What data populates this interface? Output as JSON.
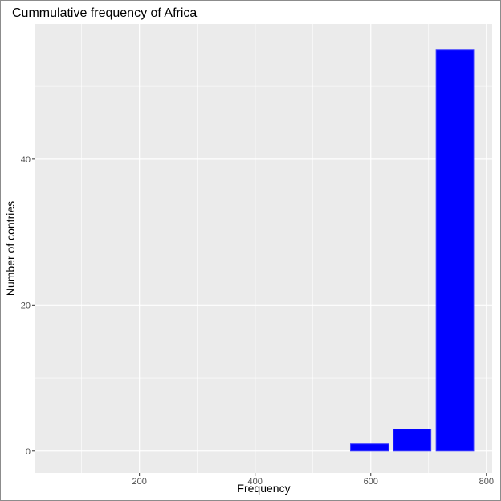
{
  "chart_data": {
    "type": "bar",
    "title": "Cummulative frequency of Africa",
    "xlabel": "Frequency",
    "ylabel": "Number of contries",
    "xlim": [
      20,
      810
    ],
    "ylim": [
      -3,
      58.5
    ],
    "x_ticks": [
      200,
      400,
      600,
      800
    ],
    "y_ticks": [
      0,
      20,
      40
    ],
    "bars": [
      {
        "x_start": 565,
        "x_end": 631,
        "value": 1
      },
      {
        "x_start": 639,
        "x_end": 704,
        "value": 3
      },
      {
        "x_start": 713,
        "x_end": 778,
        "value": 55
      }
    ],
    "bar_color": "#0000ff",
    "panel_color": "#ebebeb",
    "grid": true
  }
}
